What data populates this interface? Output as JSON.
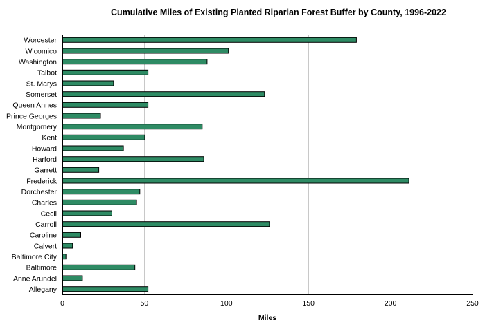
{
  "chart_data": {
    "type": "bar",
    "orientation": "horizontal",
    "title": "Cumulative Miles of Existing Planted Riparian Forest Buffer by County, 1996-2022",
    "xlabel": "Miles",
    "ylabel": "",
    "xlim": [
      0,
      250
    ],
    "xticks": [
      0,
      50,
      100,
      150,
      200,
      250
    ],
    "grid": true,
    "bar_color": "#2e8b64",
    "categories": [
      "Worcester",
      "Wicomico",
      "Washington",
      "Talbot",
      "St. Marys",
      "Somerset",
      "Queen Annes",
      "Prince Georges",
      "Montgomery",
      "Kent",
      "Howard",
      "Harford",
      "Garrett",
      "Frederick",
      "Dorchester",
      "Charles",
      "Cecil",
      "Carroll",
      "Caroline",
      "Calvert",
      "Baltimore City",
      "Baltimore",
      "Anne Arundel",
      "Allegany"
    ],
    "values": [
      179,
      101,
      88,
      52,
      31,
      123,
      52,
      23,
      85,
      50,
      37,
      86,
      22,
      211,
      47,
      45,
      30,
      126,
      11,
      6,
      2,
      44,
      12,
      52
    ]
  }
}
